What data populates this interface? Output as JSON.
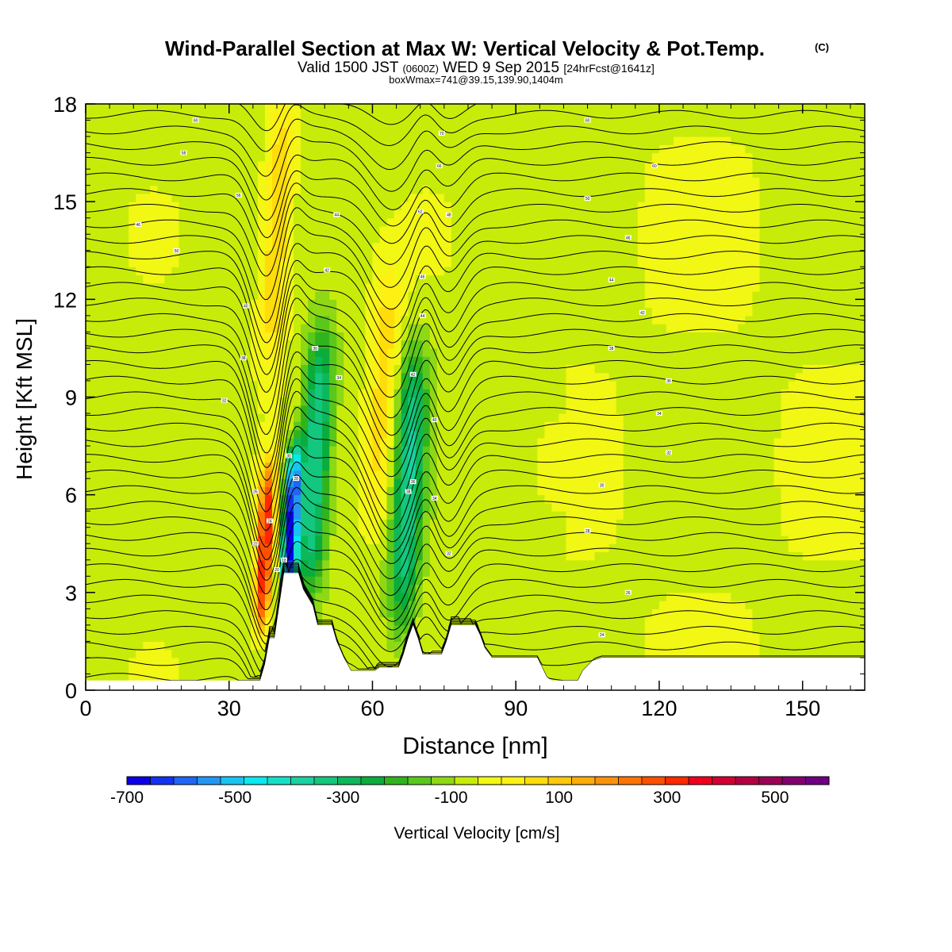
{
  "header": {
    "title": "Wind-Parallel Section at Max W: Vertical Velocity & Pot.Temp.",
    "copyright": "(C)",
    "valid_prefix": "Valid 1500 JST",
    "valid_zulu": "(0600Z)",
    "valid_date": "WED 9 Sep 2015",
    "forecast_tag": "[24hrFcst@1641z]",
    "box_info": "boxWmax=741@39.15,139.90,1404m"
  },
  "chart_data": {
    "type": "heatmap",
    "xlabel": "Distance [nm]",
    "ylabel": "Height [Kft MSL]",
    "xlim": [
      0,
      163
    ],
    "ylim": [
      0,
      18
    ],
    "x_ticks": [
      "0",
      "30",
      "60",
      "90",
      "120",
      "150"
    ],
    "y_ticks": [
      "0",
      "3",
      "6",
      "9",
      "12",
      "15",
      "18"
    ],
    "background_value_cm_s": 30,
    "vertical_velocity_features": [
      {
        "x": 37.5,
        "z_bottom": 1.8,
        "z_top": 7.0,
        "w": 480
      },
      {
        "x": 43.0,
        "z_bottom": 2.8,
        "z_top": 7.5,
        "w": -700
      },
      {
        "x": 48.0,
        "z_bottom": 3.0,
        "z_top": 11.0,
        "w": -350
      },
      {
        "x": 67.5,
        "z_bottom": 1.8,
        "z_top": 10.5,
        "w": -320
      },
      {
        "x": 40.0,
        "z_bottom": 10.0,
        "z_top": 18.0,
        "w": 180
      },
      {
        "x": 62.0,
        "z_bottom": 5.0,
        "z_top": 13.0,
        "w": 150
      }
    ],
    "terrain": [
      [
        0,
        0.3
      ],
      [
        36.5,
        0.3
      ],
      [
        37.5,
        0.8
      ],
      [
        38.5,
        1.6
      ],
      [
        39.5,
        1.6
      ],
      [
        40.5,
        2.6
      ],
      [
        41.5,
        3.6
      ],
      [
        44.5,
        3.6
      ],
      [
        45.5,
        3.1
      ],
      [
        47.5,
        2.6
      ],
      [
        48.5,
        2.0
      ],
      [
        51.5,
        2.0
      ],
      [
        52.5,
        1.5
      ],
      [
        54.0,
        1.0
      ],
      [
        55.5,
        0.6
      ],
      [
        60.5,
        0.6
      ],
      [
        61.5,
        0.7
      ],
      [
        65.5,
        0.7
      ],
      [
        66.5,
        1.1
      ],
      [
        67.5,
        1.6
      ],
      [
        68.5,
        2.0
      ],
      [
        69.5,
        1.6
      ],
      [
        70.5,
        1.1
      ],
      [
        74.5,
        1.1
      ],
      [
        75.5,
        1.5
      ],
      [
        76.5,
        2.0
      ],
      [
        81.5,
        2.0
      ],
      [
        82.5,
        1.7
      ],
      [
        83.5,
        1.3
      ],
      [
        85.0,
        1.0
      ],
      [
        94.5,
        1.0
      ],
      [
        95.5,
        0.7
      ],
      [
        96.5,
        0.4
      ],
      [
        97.5,
        0.3
      ],
      [
        103.0,
        0.3
      ],
      [
        104.0,
        0.6
      ],
      [
        106.0,
        0.9
      ],
      [
        108.0,
        1.0
      ],
      [
        163,
        1.0
      ]
    ],
    "colorbar": {
      "label": "Vertical Velocity [cm/s]",
      "tick_labels": [
        "-700",
        "-500",
        "-300",
        "-100",
        "100",
        "300",
        "500"
      ],
      "tick_values": [
        -700,
        -500,
        -300,
        -100,
        100,
        300,
        500
      ],
      "min": -700,
      "max": 600,
      "step": 50,
      "colors": [
        "#0a00e6",
        "#1433f0",
        "#1f66f5",
        "#2396f5",
        "#18c4f2",
        "#0ae8f0",
        "#14e0c8",
        "#19d2a0",
        "#14c77e",
        "#0db85a",
        "#0aad3c",
        "#30b41e",
        "#5ac81a",
        "#8ed814",
        "#c8ec0a",
        "#f2f714",
        "#fff014",
        "#ffdc0a",
        "#ffc80a",
        "#ffac0a",
        "#ff910a",
        "#ff7300",
        "#ff5000",
        "#ff2800",
        "#f0001e",
        "#d20032",
        "#b40041",
        "#9c0055",
        "#82006e",
        "#6e0082"
      ]
    },
    "contour_labels": [
      {
        "text": "60",
        "x": 23,
        "z": 17.5
      },
      {
        "text": "58",
        "x": 20.5,
        "z": 16.5
      },
      {
        "text": "56",
        "x": 32,
        "z": 15.2
      },
      {
        "text": "46",
        "x": 11,
        "z": 14.3
      },
      {
        "text": "50",
        "x": 19,
        "z": 13.5
      },
      {
        "text": "44",
        "x": 52.5,
        "z": 14.6
      },
      {
        "text": "42",
        "x": 50.5,
        "z": 12.9
      },
      {
        "text": "40",
        "x": 33.5,
        "z": 11.8
      },
      {
        "text": "38",
        "x": 33,
        "z": 10.2
      },
      {
        "text": "36",
        "x": 48,
        "z": 10.5
      },
      {
        "text": "34",
        "x": 53,
        "z": 9.6
      },
      {
        "text": "32",
        "x": 29,
        "z": 8.9
      },
      {
        "text": "30",
        "x": 42.5,
        "z": 7.2
      },
      {
        "text": "28",
        "x": 44,
        "z": 6.5
      },
      {
        "text": "26",
        "x": 35.5,
        "z": 6.1
      },
      {
        "text": "24",
        "x": 38.5,
        "z": 5.2
      },
      {
        "text": "22",
        "x": 35.5,
        "z": 4.5
      },
      {
        "text": "20",
        "x": 40,
        "z": 3.7
      },
      {
        "text": "18",
        "x": 41.5,
        "z": 4.0
      },
      {
        "text": "70",
        "x": 74.5,
        "z": 17.1
      },
      {
        "text": "66",
        "x": 74,
        "z": 16.1
      },
      {
        "text": "62",
        "x": 70,
        "z": 14.7
      },
      {
        "text": "48",
        "x": 76,
        "z": 14.6
      },
      {
        "text": "46",
        "x": 70.5,
        "z": 12.7
      },
      {
        "text": "44",
        "x": 70.5,
        "z": 11.5
      },
      {
        "text": "42",
        "x": 68.5,
        "z": 9.7
      },
      {
        "text": "40",
        "x": 73,
        "z": 8.3
      },
      {
        "text": "38",
        "x": 67.5,
        "z": 6.1
      },
      {
        "text": "36",
        "x": 68.5,
        "z": 6.4
      },
      {
        "text": "34",
        "x": 73,
        "z": 5.9
      },
      {
        "text": "32",
        "x": 76,
        "z": 4.2
      },
      {
        "text": "60",
        "x": 105,
        "z": 17.5
      },
      {
        "text": "60",
        "x": 119,
        "z": 16.1
      },
      {
        "text": "50",
        "x": 105,
        "z": 15.1
      },
      {
        "text": "46",
        "x": 113.5,
        "z": 13.9
      },
      {
        "text": "44",
        "x": 110,
        "z": 12.6
      },
      {
        "text": "42",
        "x": 116.5,
        "z": 11.6
      },
      {
        "text": "38",
        "x": 110,
        "z": 10.5
      },
      {
        "text": "36",
        "x": 122,
        "z": 9.5
      },
      {
        "text": "34",
        "x": 120,
        "z": 8.5
      },
      {
        "text": "32",
        "x": 122,
        "z": 7.3
      },
      {
        "text": "30",
        "x": 108,
        "z": 6.3
      },
      {
        "text": "28",
        "x": 105,
        "z": 4.9
      },
      {
        "text": "26",
        "x": 113.5,
        "z": 3.0
      },
      {
        "text": "24",
        "x": 108,
        "z": 1.7
      }
    ]
  }
}
